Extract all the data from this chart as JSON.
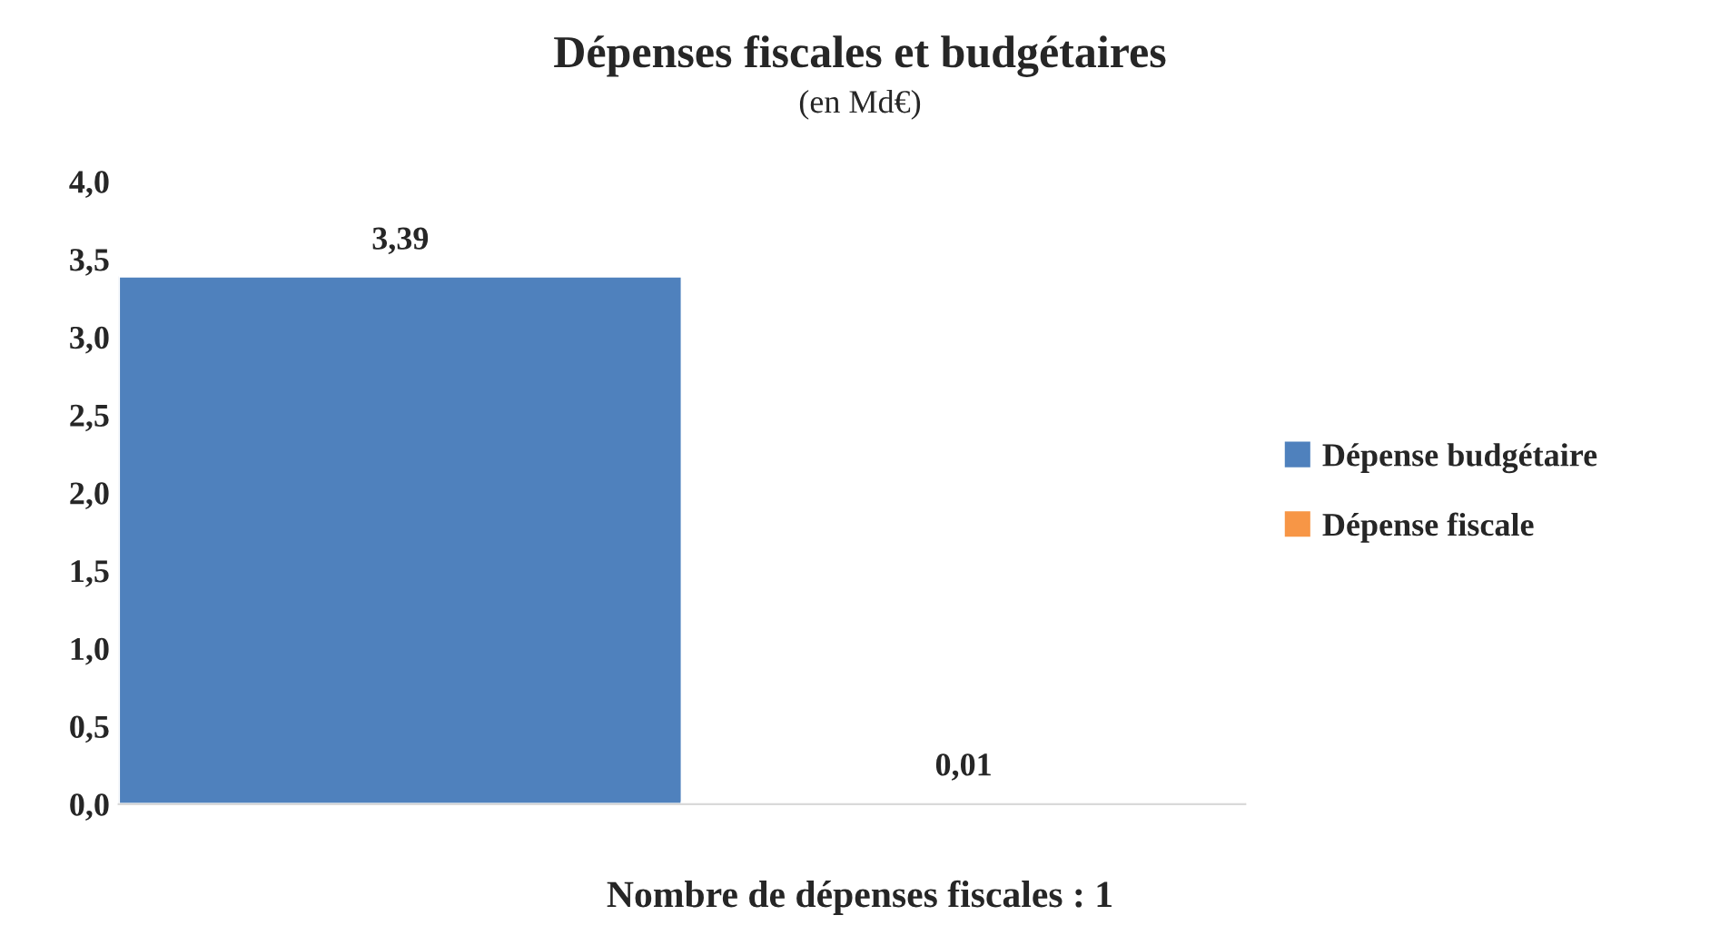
{
  "chart_data": {
    "type": "bar",
    "title": "Dépenses fiscales et budgétaires",
    "subtitle": "(en Md€)",
    "categories": [
      null
    ],
    "series": [
      {
        "name": "Dépense budgétaire",
        "color": "#4f81bd",
        "values": [
          3.39
        ],
        "value_labels": [
          "3,39"
        ]
      },
      {
        "name": "Dépense fiscale",
        "color": "#f79646",
        "values": [
          0.01
        ],
        "value_labels": [
          "0,01"
        ]
      }
    ],
    "ylim": [
      0,
      4
    ],
    "yticks": [
      {
        "value": 0,
        "label": "0,0"
      },
      {
        "value": 0.5,
        "label": "0,5"
      },
      {
        "value": 1,
        "label": "1,0"
      },
      {
        "value": 1.5,
        "label": "1,5"
      },
      {
        "value": 2,
        "label": "2,0"
      },
      {
        "value": 2.5,
        "label": "2,5"
      },
      {
        "value": 3,
        "label": "3,0"
      },
      {
        "value": 3.5,
        "label": "3,5"
      },
      {
        "value": 4,
        "label": "4,0"
      }
    ],
    "legend": "right",
    "grid": false,
    "annotations": [
      "Nombre de dépenses fiscales : 1"
    ]
  }
}
